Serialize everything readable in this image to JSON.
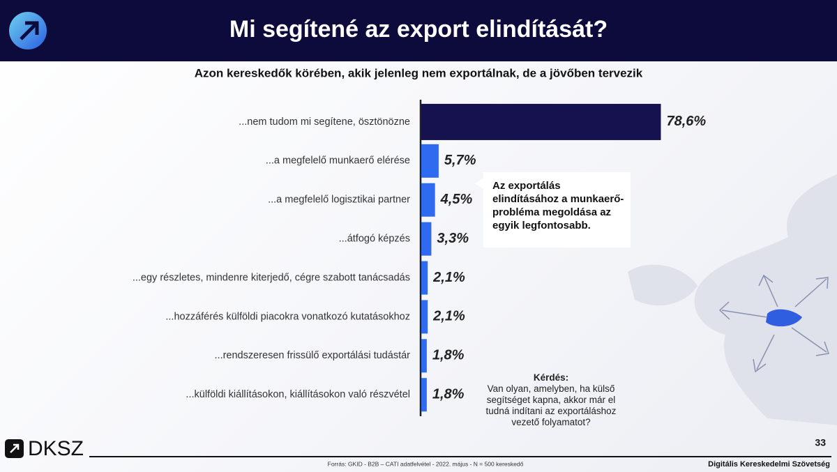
{
  "chart_data": {
    "type": "hbar",
    "title": "Mi segítené az export elindítását?",
    "subtitle": "Azon kereskedők körében, akik jelenleg nem exportálnak, de a jövőben tervezik",
    "categories": [
      "...nem tudom mi segítene, ösztönözne",
      "...a megfelelő munkaerő elérése",
      "...a megfelelő logisztikai partner",
      "...átfogó képzés",
      "...egy részletes, mindenre kiterjedő, cégre szabott tanácsadás",
      "...hozzáférés külföldi piacokra vonatkozó kutatásokhoz",
      "...rendszeresen frissülő exportálási tudástár",
      "...külföldi kiállításokon, kiállításokon való részvétel"
    ],
    "values": [
      78.6,
      5.7,
      4.5,
      3.3,
      2.1,
      2.1,
      1.8,
      1.8
    ],
    "value_labels": [
      "78,6%",
      "5,7%",
      "4,5%",
      "3,3%",
      "2,1%",
      "2,1%",
      "1,8%",
      "1,8%"
    ],
    "colors": [
      "#16124f",
      "#2f6bf0",
      "#2f6bf0",
      "#2f6bf0",
      "#2f6bf0",
      "#2f6bf0",
      "#2f6bf0",
      "#2f6bf0"
    ]
  },
  "callout": "Az exportálás elindításához a munkaerő-probléma megoldása az egyik legfontosabb.",
  "question": {
    "title": "Kérdés:",
    "text": "Van olyan, amelyben, ha külső segítséget kapna, akkor már el tudná indítani az exportáláshoz vezető folyamatot?"
  },
  "footer": {
    "logo": "DKSZ",
    "page": "33",
    "source": "Forrás: GKID - B2B – CATI adatfelvétel - 2022. május - N = 500 kereskedő",
    "organization": "Digitális Kereskedelmi Szövetség"
  }
}
